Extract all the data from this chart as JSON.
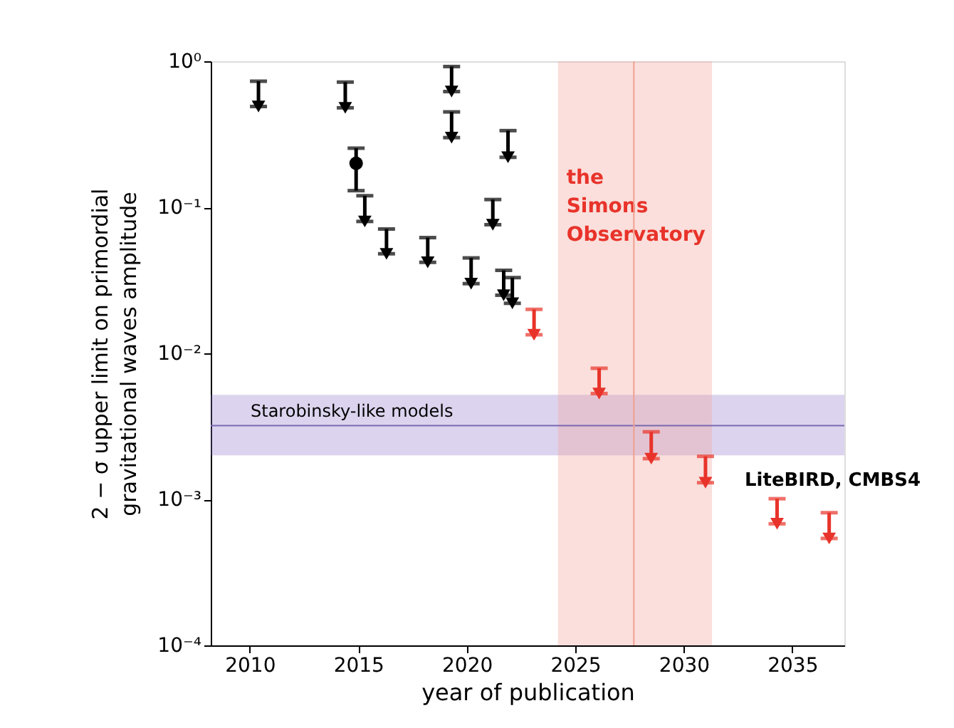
{
  "chart_data": {
    "type": "scatter",
    "xlabel": "year of publication",
    "ylabel": "2 − σ upper limit on primordial gravitational waves amplitude",
    "log": true,
    "grid": false,
    "xlim": [
      2008.2,
      2037.4
    ],
    "xticks": [
      {
        "value": 2010,
        "label": "2010"
      },
      {
        "value": 2015,
        "label": "2015"
      },
      {
        "value": 2020,
        "label": "2020"
      },
      {
        "value": 2025,
        "label": "2025"
      },
      {
        "value": 2030,
        "label": "2030"
      },
      {
        "value": 2035,
        "label": "2035"
      }
    ],
    "ylim": [
      0.0001,
      1
    ],
    "yticks": [
      {
        "value": 0.0001,
        "label": "10⁻⁴"
      },
      {
        "value": 0.001,
        "label": "10⁻³"
      },
      {
        "value": 0.01,
        "label": "10⁻²"
      },
      {
        "value": 0.1,
        "label": "10⁻¹"
      },
      {
        "value": 1,
        "label": "10⁰"
      }
    ],
    "series": [
      {
        "color": "#000000",
        "marker": "triangle",
        "x": [
          2010.4,
          2014.4,
          2015.3,
          2016.3,
          2018.2,
          2019.3,
          2019.3,
          2020.2,
          2021.2,
          2021.9,
          2021.7,
          2022.1
        ],
        "values": [
          0.49,
          0.48,
          0.08,
          0.048,
          0.042,
          0.62,
          0.3,
          0.03,
          0.076,
          0.22,
          0.025,
          0.022
        ],
        "errors": [
          [
            0.49,
            0.73
          ],
          [
            0.48,
            0.72
          ],
          [
            0.08,
            0.12
          ],
          [
            0.048,
            0.071
          ],
          [
            0.042,
            0.062
          ],
          [
            0.62,
            0.92
          ],
          [
            0.3,
            0.45
          ],
          [
            0.03,
            0.045
          ],
          [
            0.076,
            0.113
          ],
          [
            0.22,
            0.335
          ],
          [
            0.025,
            0.037
          ],
          [
            0.022,
            0.033
          ]
        ]
      },
      {
        "color": "#000000",
        "marker": "circle",
        "x": [
          2014.9
        ],
        "values": [
          0.2
        ],
        "errors": [
          [
            0.13,
            0.254
          ]
        ]
      },
      {
        "color": "#e8332a",
        "marker": "triangle",
        "x": [
          2023.1,
          2026.1,
          2028.5,
          2031.0,
          2034.3,
          2036.7
        ],
        "values": [
          0.0134,
          0.0053,
          0.0019,
          0.0013,
          0.00068,
          0.00054
        ],
        "errors": [
          [
            0.0134,
            0.02
          ],
          [
            0.0053,
            0.0079
          ],
          [
            0.0019,
            0.0029
          ],
          [
            0.0013,
            0.00197
          ],
          [
            0.00068,
            0.00101
          ],
          [
            0.00054,
            0.00081
          ]
        ]
      }
    ],
    "bands": [
      {
        "axis": "y",
        "from": 0.002,
        "to": 0.0052,
        "label": "Starobinsky-like models",
        "color": "#8a72c8"
      },
      {
        "axis": "x",
        "from": 2024.2,
        "to": 2031.3,
        "label": "the Simons Observatory",
        "color": "#f2a49a"
      }
    ],
    "ref_lines": [
      {
        "axis": "y",
        "value": 0.0032,
        "color": "#7a68b0"
      },
      {
        "axis": "x",
        "value": 2027.7,
        "color": "#f0a090"
      }
    ],
    "annotations": [
      "LiteBIRD, CMBS4"
    ]
  }
}
